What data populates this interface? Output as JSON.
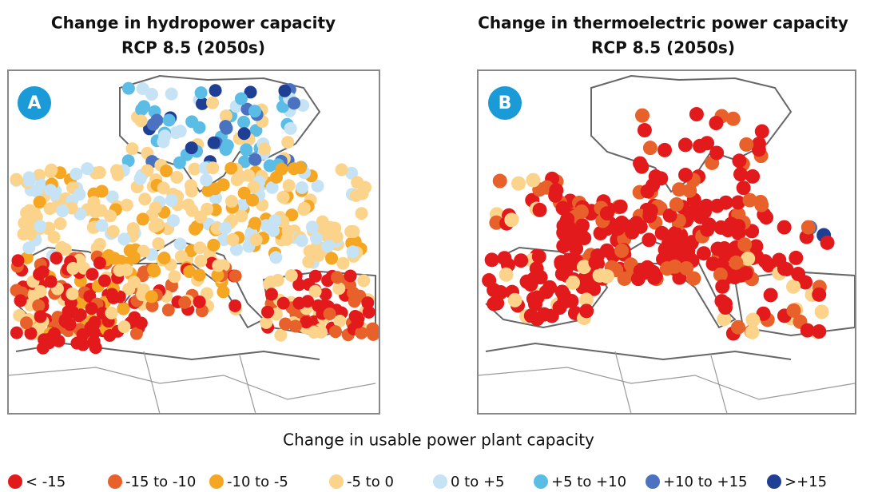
{
  "panels": [
    {
      "title": "Change in hydropower capacity",
      "subtitle": "RCP 8.5 (2050s)",
      "badge": "A"
    },
    {
      "title": "Change in thermoelectric power capacity",
      "subtitle": "RCP 8.5 (2050s)",
      "badge": "B"
    }
  ],
  "legend": {
    "title": "Change in usable power plant capacity",
    "items": [
      {
        "name": "< -15",
        "color": "#e31a1c"
      },
      {
        "name": "-15 to -10",
        "color": "#e8602a"
      },
      {
        "name": "-10 to -5",
        "color": "#f5a623"
      },
      {
        "name": "-5 to 0",
        "color": "#fbd38a"
      },
      {
        "name": "0 to +5",
        "color": "#c6e3f5"
      },
      {
        "name": "+5 to +10",
        "color": "#5bbde6"
      },
      {
        "name": "+10 to +15",
        "color": "#4a72c0"
      },
      {
        "name": ">+15",
        "color": "#1f3f94"
      }
    ]
  }
}
